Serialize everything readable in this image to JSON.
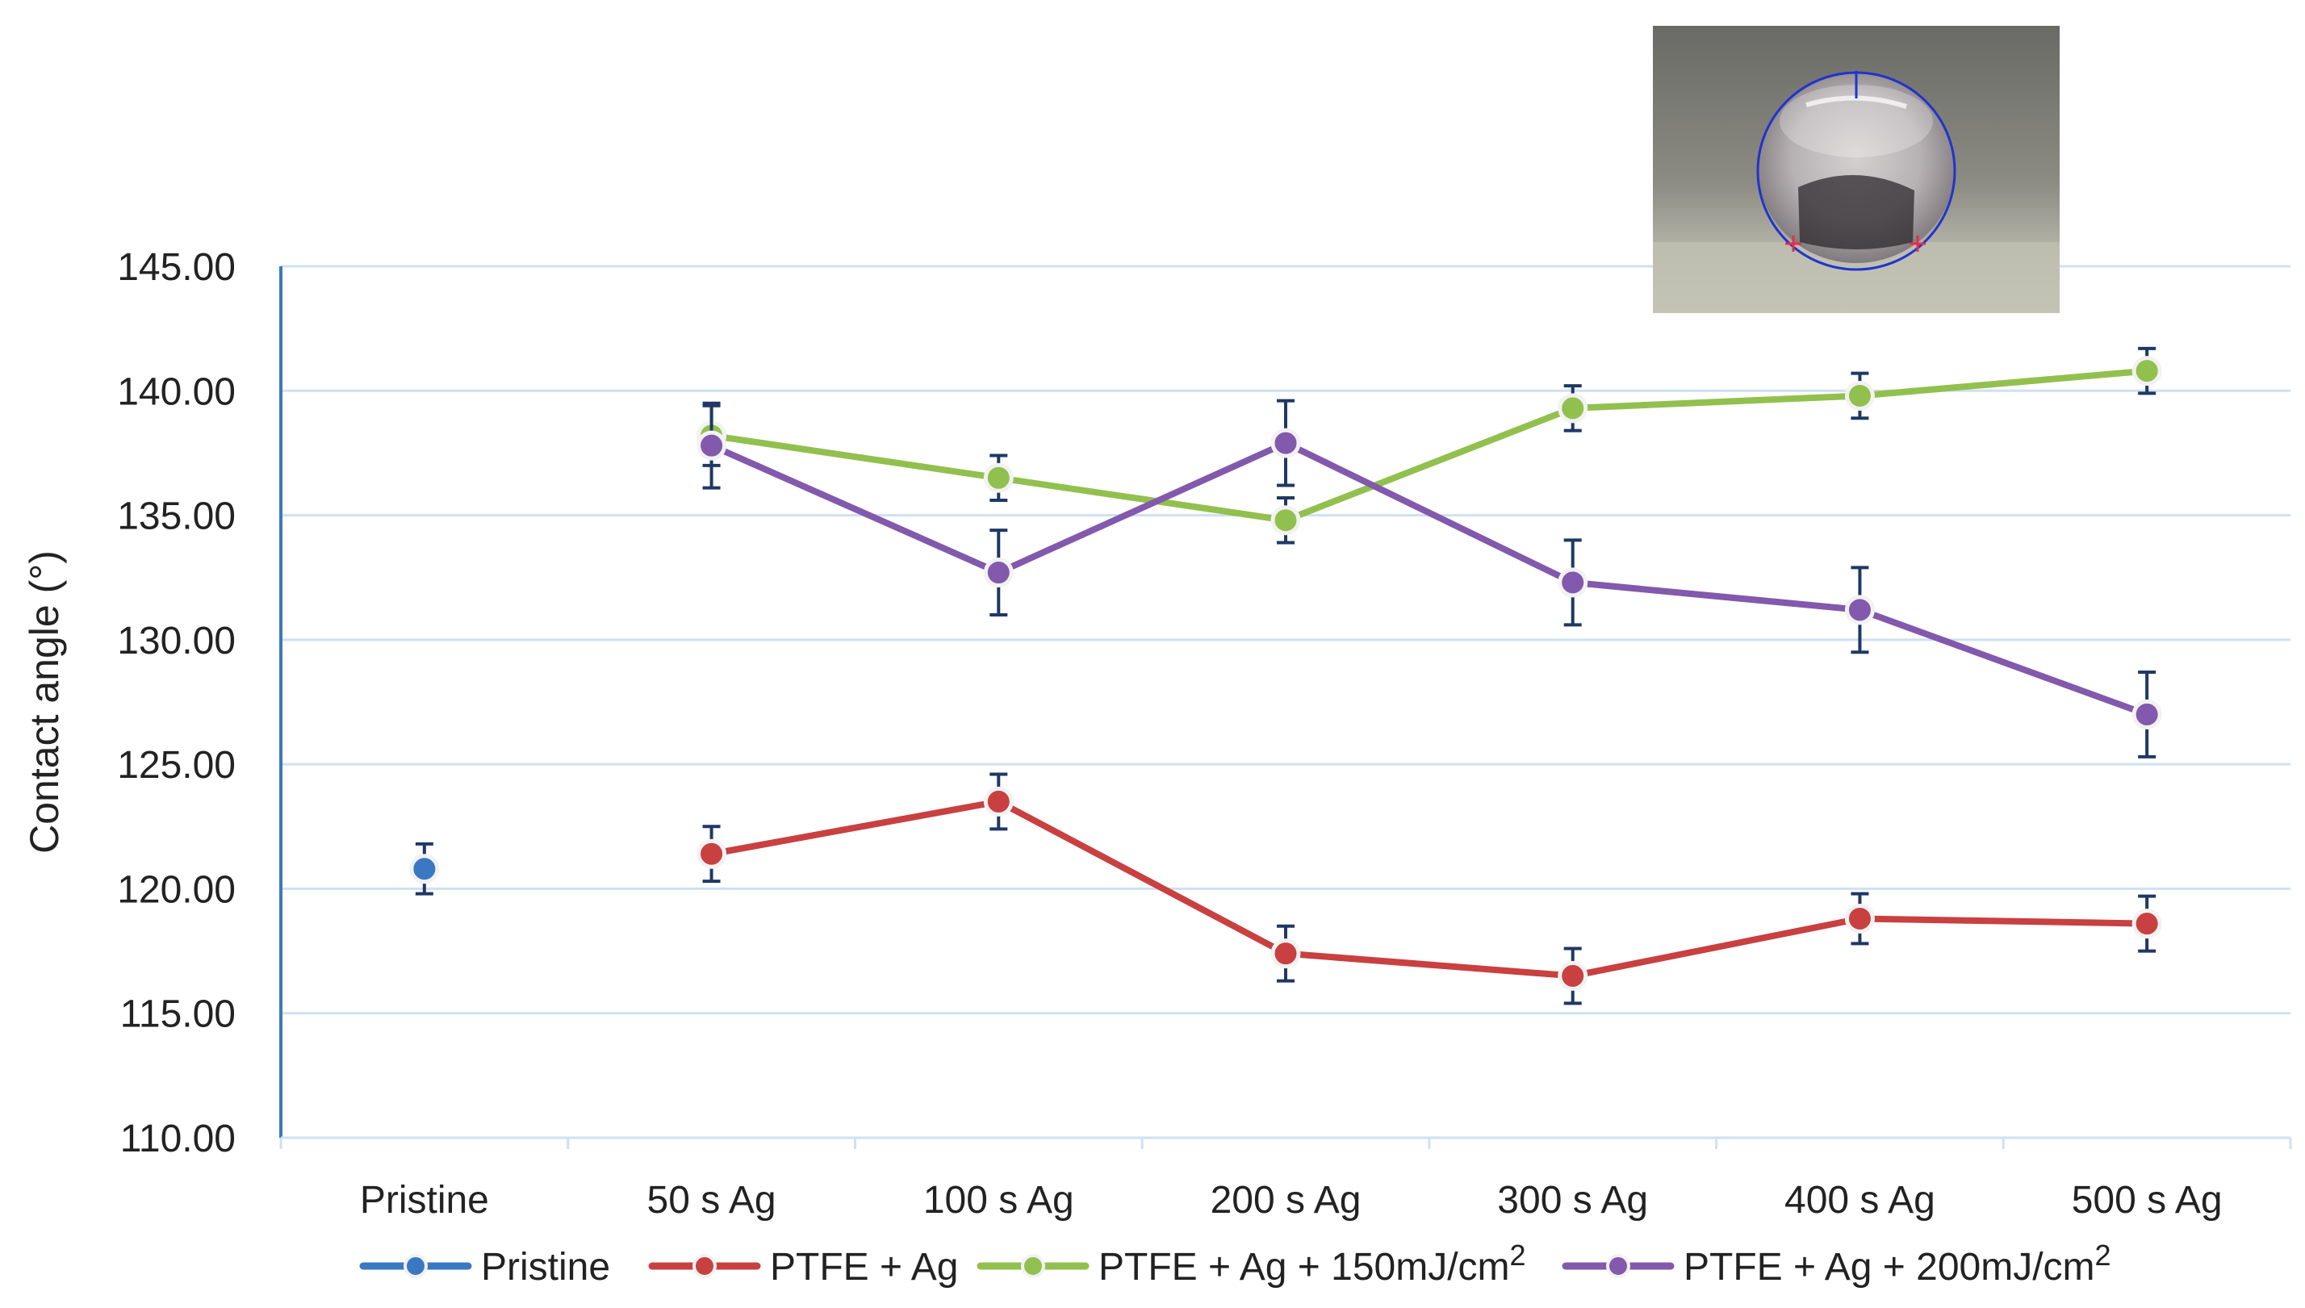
{
  "chart_data": {
    "type": "line",
    "title": "",
    "xlabel": "",
    "ylabel": "Contact angle (°)",
    "ylim": [
      110,
      145
    ],
    "ytick_step": 5,
    "ytick_labels": [
      "110.00",
      "115.00",
      "120.00",
      "125.00",
      "130.00",
      "135.00",
      "140.00",
      "145.00"
    ],
    "categories": [
      "Pristine",
      "50 s Ag",
      "100 s Ag",
      "200 s Ag",
      "300 s Ag",
      "400 s Ag",
      "500 s Ag"
    ],
    "grid": true,
    "legend_position": "bottom",
    "series": [
      {
        "name": "Pristine",
        "legend_main": "Pristine",
        "legend_sup": "",
        "color": "#3b78c2",
        "values": [
          120.8,
          null,
          null,
          null,
          null,
          null,
          null
        ],
        "errors": [
          1.0,
          null,
          null,
          null,
          null,
          null,
          null
        ]
      },
      {
        "name": "PTFE + Ag",
        "legend_main": "PTFE + Ag",
        "legend_sup": "",
        "color": "#c94040",
        "values": [
          null,
          121.4,
          123.5,
          117.4,
          116.5,
          118.8,
          118.6
        ],
        "errors": [
          null,
          1.1,
          1.1,
          1.1,
          1.1,
          1.0,
          1.1
        ]
      },
      {
        "name": "PTFE + Ag + 150mJ/cm2",
        "legend_main": "PTFE + Ag + 150mJ/cm",
        "legend_sup": "2",
        "color": "#92c04e",
        "values": [
          null,
          138.2,
          136.5,
          134.8,
          139.3,
          139.8,
          140.8
        ],
        "errors": [
          null,
          1.2,
          0.9,
          0.9,
          0.9,
          0.9,
          0.9
        ]
      },
      {
        "name": "PTFE + Ag + 200mJ/cm2",
        "legend_main": "PTFE + Ag + 200mJ/cm",
        "legend_sup": "2",
        "color": "#8259ac",
        "values": [
          null,
          137.8,
          132.7,
          137.9,
          132.3,
          131.2,
          127.0
        ],
        "errors": [
          null,
          1.7,
          1.7,
          1.7,
          1.7,
          1.7,
          1.7
        ]
      }
    ],
    "inset": {
      "description_icon": "water-droplet-photo-icon"
    }
  }
}
